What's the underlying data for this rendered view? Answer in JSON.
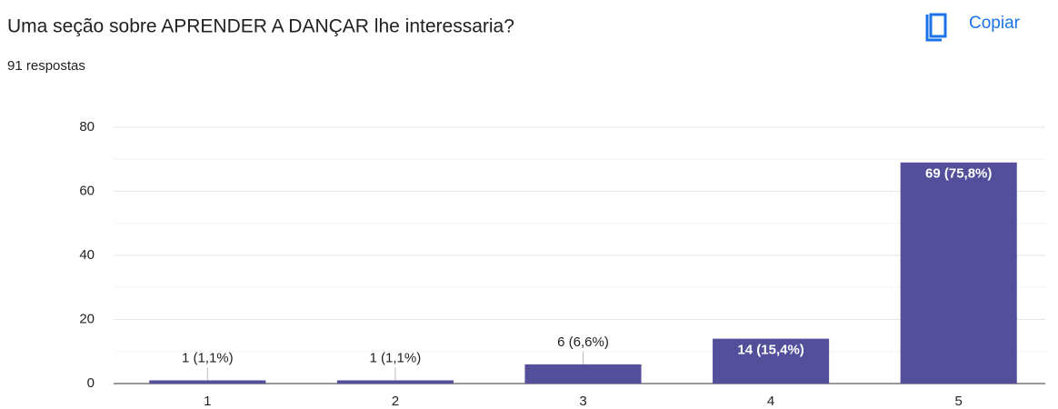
{
  "header": {
    "button": "Copiar"
  },
  "chart_data": {
    "type": "bar",
    "title": "Uma seção sobre APRENDER A DANÇAR lhe interessaria?",
    "subtitle": "91 respostas",
    "categories": [
      "1",
      "2",
      "3",
      "4",
      "5"
    ],
    "values": [
      1,
      1,
      6,
      14,
      69
    ],
    "value_labels": [
      "1 (1,1%)",
      "1 (1,1%)",
      "6 (6,6%)",
      "14 (15,4%)",
      "69 (75,8%)"
    ],
    "color": "#544f9b",
    "ylim": [
      0,
      80
    ],
    "yticks": [
      0,
      20,
      40,
      60,
      80
    ],
    "minor_yticks": [
      10,
      30,
      50,
      70
    ],
    "grid": true
  }
}
